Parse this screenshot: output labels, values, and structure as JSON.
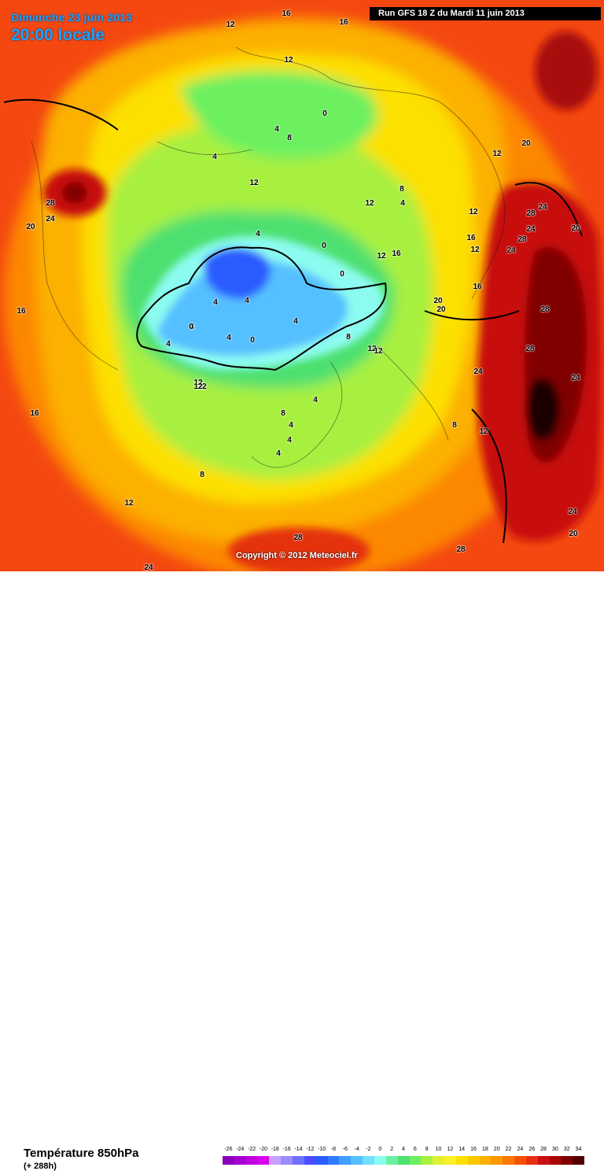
{
  "header": {
    "date": "Dimanche 23 juin 2013",
    "time": "20:00 locale",
    "run": "Run GFS 18 Z du Mardi 11 juin 2013"
  },
  "copyright": "Copyright © 2012 Meteociel.fr",
  "footer": {
    "title": "Température 850hPa",
    "subtitle": "(+ 288h)"
  },
  "scale": {
    "ticks": [
      "-26",
      "-24",
      "-22",
      "-20",
      "-18",
      "-16",
      "-14",
      "-12",
      "-10",
      "-8",
      "-6",
      "-4",
      "-2",
      "0",
      "2",
      "4",
      "6",
      "8",
      "10",
      "12",
      "14",
      "16",
      "18",
      "20",
      "22",
      "24",
      "26",
      "28",
      "30",
      "32",
      "34"
    ],
    "colors": [
      "#8a00b8",
      "#a400d0",
      "#c000e0",
      "#d800ee",
      "#c8a0ff",
      "#9a8cff",
      "#7070ff",
      "#4c4cff",
      "#2a5cff",
      "#2f7cff",
      "#3fa0ff",
      "#55c0ff",
      "#70e0ff",
      "#8cfcf0",
      "#6af0a0",
      "#4ee070",
      "#6cf060",
      "#a8f040",
      "#e0f030",
      "#fcf028",
      "#fce000",
      "#fcc800",
      "#fcb000",
      "#fc9800",
      "#fc7800",
      "#f45000",
      "#e43010",
      "#c81010",
      "#a80808",
      "#800000",
      "#500000"
    ]
  },
  "labels": {
    "l1": "16",
    "l2": "12",
    "l3": "16",
    "l4": "12",
    "l5": "0",
    "l6": "4",
    "l7": "8",
    "l8": "4",
    "l9": "12",
    "l10": "12",
    "l11": "28",
    "l12": "24",
    "l13": "20",
    "l14": "8",
    "l15": "4",
    "l16": "12",
    "l17": "12",
    "l18": "4",
    "l19": "0",
    "l20": "0",
    "l21": "16",
    "l22": "12",
    "l23": "16",
    "l24": "12",
    "l25": "20",
    "l26": "20",
    "l27": "20",
    "l28": "16",
    "l29": "4",
    "l30": "4",
    "l31": "4",
    "l32": "4",
    "l33": "4",
    "l34": "0",
    "l35": "4",
    "l36": "8",
    "l37": "12",
    "l38": "12",
    "l39": "12",
    "l40": "24",
    "l41": "8",
    "l42": "4",
    "l43": "4",
    "l44": "4",
    "l45": "4",
    "l46": "8",
    "l47": "12",
    "l48": "12",
    "l49": "16",
    "l50": "8",
    "l51": "12",
    "l52": "24",
    "l53": "28",
    "l54": "28",
    "l55": "24",
    "l56": "24",
    "l57": "28",
    "l58": "24",
    "l59": "28",
    "l60": "28",
    "l61": "20",
    "l62": "24",
    "l63": "20",
    "l64": "28",
    "l65": "24",
    "l66": "16",
    "l67": "0",
    "l68": "12"
  }
}
